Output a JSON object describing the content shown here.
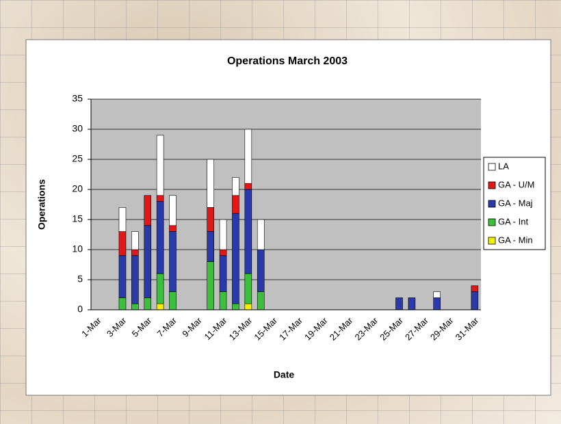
{
  "chart_data": {
    "type": "stacked_bar",
    "title": "Operations March 2003",
    "x_label": "Date",
    "y_label": "Operations",
    "categories": [
      "1-Mar",
      null,
      "3-Mar",
      null,
      "5-Mar",
      null,
      "7-Mar",
      null,
      "9-Mar",
      null,
      "11-Mar",
      null,
      "13-Mar",
      null,
      "15-Mar",
      null,
      "17-Mar",
      null,
      "19-Mar",
      null,
      "21-Mar",
      null,
      "23-Mar",
      null,
      "25-Mar",
      null,
      "27-Mar",
      null,
      "29-Mar",
      null,
      "31-Mar"
    ],
    "series": [
      {
        "name": "GA - Min",
        "color": "#f2ef00",
        "values": [
          0,
          0,
          0,
          0,
          0,
          1,
          0,
          0,
          0,
          0,
          0,
          0,
          1,
          0,
          0,
          0,
          0,
          0,
          0,
          0,
          0,
          0,
          0,
          0,
          0,
          0,
          0,
          0,
          0,
          0,
          0
        ]
      },
      {
        "name": "GA - Int",
        "color": "#3cbf3c",
        "values": [
          0,
          0,
          2,
          1,
          2,
          5,
          3,
          0,
          0,
          8,
          3,
          1,
          5,
          3,
          0,
          0,
          0,
          0,
          0,
          0,
          0,
          0,
          0,
          0,
          0,
          0,
          0,
          0,
          0,
          0,
          0
        ]
      },
      {
        "name": "GA - Maj",
        "color": "#2a3aa8",
        "values": [
          0,
          0,
          7,
          8,
          12,
          12,
          10,
          0,
          0,
          5,
          6,
          15,
          14,
          7,
          0,
          0,
          0,
          0,
          0,
          0,
          0,
          0,
          0,
          0,
          2,
          2,
          0,
          2,
          0,
          0,
          3
        ]
      },
      {
        "name": "GA - U/M",
        "color": "#e01818",
        "values": [
          0,
          0,
          4,
          1,
          5,
          1,
          1,
          0,
          0,
          4,
          1,
          3,
          1,
          0,
          0,
          0,
          0,
          0,
          0,
          0,
          0,
          0,
          0,
          0,
          0,
          0,
          0,
          0,
          0,
          0,
          1
        ]
      },
      {
        "name": "LA",
        "color": "#ffffff",
        "values": [
          0,
          0,
          4,
          3,
          0,
          10,
          5,
          0,
          0,
          8,
          5,
          3,
          9,
          5,
          0,
          0,
          0,
          0,
          0,
          0,
          0,
          0,
          0,
          0,
          0,
          0,
          0,
          1,
          0,
          0,
          0
        ]
      }
    ],
    "ylim": [
      0,
      35
    ],
    "yticks": [
      0,
      5,
      10,
      15,
      20,
      25,
      30,
      35
    ],
    "grid": true,
    "legend": "right"
  }
}
